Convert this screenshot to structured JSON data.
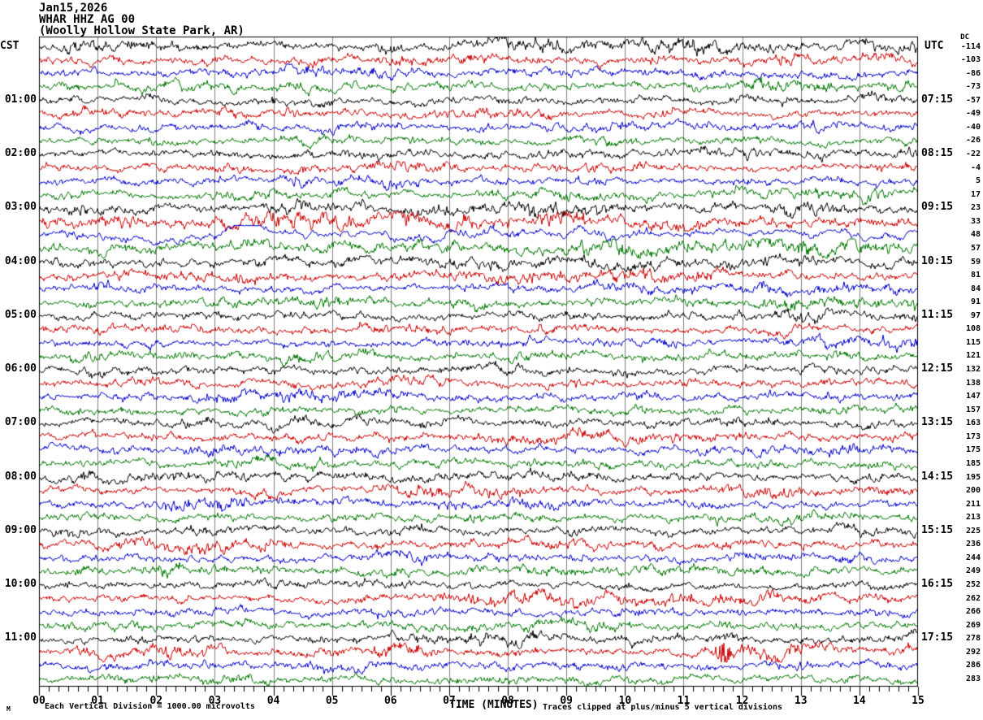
{
  "title": {
    "date": "Jan15,2026",
    "station": "WHAR HHZ AG 00",
    "location": "(Woolly Hollow State Park, AR)"
  },
  "left_axis": {
    "timezone": "CST",
    "hours": [
      "01:00",
      "02:00",
      "03:00",
      "04:00",
      "05:00",
      "06:00",
      "07:00",
      "08:00",
      "09:00",
      "10:00",
      "11:00"
    ]
  },
  "right_axis": {
    "timezone": "UTC",
    "hours": [
      "07:15",
      "08:15",
      "09:15",
      "10:15",
      "11:15",
      "12:15",
      "13:15",
      "14:15",
      "15:15",
      "16:15",
      "17:15"
    ],
    "dc_header": "DC",
    "dc_values": [
      -114,
      -103,
      -86,
      -73,
      -57,
      -49,
      -40,
      -26,
      -22,
      -4,
      5,
      17,
      23,
      33,
      48,
      57,
      59,
      81,
      84,
      91,
      97,
      108,
      115,
      121,
      132,
      138,
      147,
      157,
      163,
      173,
      175,
      185,
      195,
      200,
      211,
      213,
      225,
      236,
      244,
      249,
      252,
      262,
      266,
      269,
      278,
      292,
      286,
      283
    ]
  },
  "x_axis": {
    "ticks": [
      "00",
      "01",
      "02",
      "03",
      "04",
      "05",
      "06",
      "07",
      "08",
      "09",
      "10",
      "11",
      "12",
      "13",
      "14",
      "15"
    ],
    "label": "TIME (MINUTES)"
  },
  "footer": {
    "scale_note": "Each Vertical Division = 1000.00 microvolts",
    "clip_note": "Traces clipped at plus/minus 5 vertical divisions",
    "watermark": "M"
  },
  "chart_data": {
    "type": "line",
    "subtype": "helicorder-seismogram",
    "station": "WHAR HHZ AG 00",
    "station_name": "Woolly Hollow State Park, AR",
    "date": "Jan15,2026",
    "lines": 48,
    "minutes_per_line": 15,
    "x_range_minutes": [
      0,
      15
    ],
    "minor_ticks_per_minute": 6,
    "grid_on": true,
    "grid_color": "#808080",
    "border_color": "#000000",
    "trace_colors_cycle": [
      "#000000",
      "#cc0000",
      "#0000cc",
      "#007700"
    ],
    "first_line_local_time": "00:00 CST",
    "events": [
      {
        "row": 13,
        "trace_color": "red",
        "description": "elevated long-period oscillations, 03:00 CST block"
      },
      {
        "row": 14,
        "trace_color": "blue",
        "description": "prominent long-period event spanning the whole line, 03:00 CST block"
      },
      {
        "row": 15,
        "trace_color": "green",
        "description": "elevated long-period noise, 03:00 CST block"
      },
      {
        "row": 45,
        "trace_color": "red",
        "description": "dense high-frequency burst near minute 11.6, 11:00 CST line"
      }
    ],
    "rows": [
      {
        "amp": 1.2
      },
      {
        "amp": 1.15
      },
      {
        "amp": 1.1
      },
      {
        "amp": 1.1
      },
      {
        "amp": 1
      },
      {
        "amp": 1
      },
      {
        "amp": 1
      },
      {
        "amp": 1
      },
      {
        "amp": 1
      },
      {
        "amp": 1
      },
      {
        "amp": 1
      },
      {
        "amp": 1
      },
      {
        "amp": 1.25
      },
      {
        "amp": 1.45,
        "slowmix": 0.8
      },
      {
        "amp": 2.3,
        "lowfreq": true
      },
      {
        "amp": 1.3,
        "slowmix": 0.6
      },
      {
        "amp": 1.15
      },
      {
        "amp": 1.05
      },
      {
        "amp": 1
      },
      {
        "amp": 1
      },
      {
        "amp": 1
      },
      {
        "amp": 1
      },
      {
        "amp": 1
      },
      {
        "amp": 1
      },
      {
        "amp": 1
      },
      {
        "amp": 1
      },
      {
        "amp": 1
      },
      {
        "amp": 1
      },
      {
        "amp": 1
      },
      {
        "amp": 1
      },
      {
        "amp": 1
      },
      {
        "amp": 1
      },
      {
        "amp": 1
      },
      {
        "amp": 1
      },
      {
        "amp": 1
      },
      {
        "amp": 1
      },
      {
        "amp": 1.05
      },
      {
        "amp": 1.05
      },
      {
        "amp": 1
      },
      {
        "amp": 1
      },
      {
        "amp": 1
      },
      {
        "amp": 1
      },
      {
        "amp": 1
      },
      {
        "amp": 1
      },
      {
        "amp": 1
      },
      {
        "amp": 1,
        "burst": {
          "start": 11.5,
          "end": 11.85,
          "gain": 16
        }
      },
      {
        "amp": 1
      },
      {
        "amp": 1
      }
    ]
  }
}
